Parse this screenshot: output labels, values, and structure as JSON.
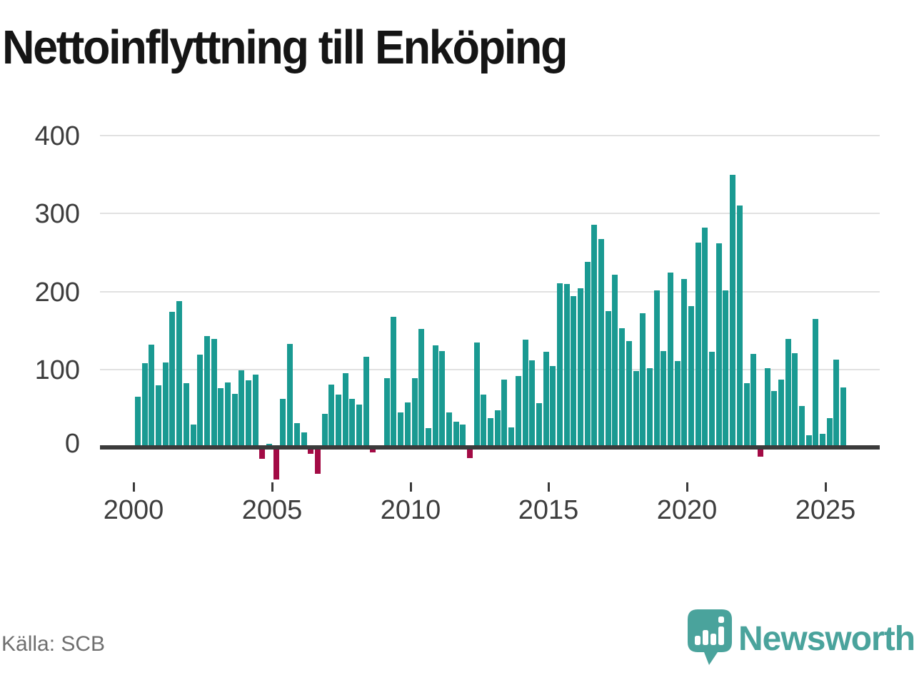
{
  "title": "Nettoinflyttning till Enköping",
  "source": {
    "label": "Källa: SCB"
  },
  "branding": {
    "logo_text": "Newsworthy",
    "logo_icon": "newsworthy-chart-bubble-icon"
  },
  "colors": {
    "bar_positive": "#1a9a92",
    "bar_negative": "#a30b45",
    "axis": "#3b3b3b",
    "gridline": "#e1e1e1",
    "tick_text": "#3d3d3d",
    "title_text": "#151515",
    "source_text": "#6f6f6f",
    "brand_teal": "#4aa39c"
  },
  "chart_data": {
    "type": "bar",
    "title": "Nettoinflyttning till Enköping",
    "xlabel": "",
    "ylabel": "",
    "grid": true,
    "legend": false,
    "frequency": "quarterly",
    "y_ticks": [
      0,
      100,
      200,
      300,
      400
    ],
    "x_ticks": [
      2000,
      2005,
      2010,
      2015,
      2020,
      2025
    ],
    "ylim": [
      -55,
      400
    ],
    "categories": [
      "2000Q1",
      "2000Q2",
      "2000Q3",
      "2000Q4",
      "2001Q1",
      "2001Q2",
      "2001Q3",
      "2001Q4",
      "2002Q1",
      "2002Q2",
      "2002Q3",
      "2002Q4",
      "2003Q1",
      "2003Q2",
      "2003Q3",
      "2003Q4",
      "2004Q1",
      "2004Q2",
      "2004Q3",
      "2004Q4",
      "2005Q1",
      "2005Q2",
      "2005Q3",
      "2005Q4",
      "2006Q1",
      "2006Q2",
      "2006Q3",
      "2006Q4",
      "2007Q1",
      "2007Q2",
      "2007Q3",
      "2007Q4",
      "2008Q1",
      "2008Q2",
      "2008Q3",
      "2008Q4",
      "2009Q1",
      "2009Q2",
      "2009Q3",
      "2009Q4",
      "2010Q1",
      "2010Q2",
      "2010Q3",
      "2010Q4",
      "2011Q1",
      "2011Q2",
      "2011Q3",
      "2011Q4",
      "2012Q1",
      "2012Q2",
      "2012Q3",
      "2012Q4",
      "2013Q1",
      "2013Q2",
      "2013Q3",
      "2013Q4",
      "2014Q1",
      "2014Q2",
      "2014Q3",
      "2014Q4",
      "2015Q1",
      "2015Q2",
      "2015Q3",
      "2015Q4",
      "2016Q1",
      "2016Q2",
      "2016Q3",
      "2016Q4",
      "2017Q1",
      "2017Q2",
      "2017Q3",
      "2017Q4",
      "2018Q1",
      "2018Q2",
      "2018Q3",
      "2018Q4",
      "2019Q1",
      "2019Q2",
      "2019Q3",
      "2019Q4",
      "2020Q1",
      "2020Q2",
      "2020Q3",
      "2020Q4",
      "2021Q1",
      "2021Q2",
      "2021Q3",
      "2021Q4",
      "2022Q1",
      "2022Q2",
      "2022Q3",
      "2022Q4",
      "2023Q1",
      "2023Q2",
      "2023Q3",
      "2023Q4",
      "2024Q1",
      "2024Q2",
      "2024Q3",
      "2024Q4",
      "2025Q1",
      "2025Q2",
      "2025Q3"
    ],
    "values": [
      65,
      108,
      132,
      80,
      109,
      174,
      188,
      82,
      29,
      119,
      143,
      139,
      76,
      83,
      69,
      99,
      86,
      93,
      -12,
      5,
      -38,
      62,
      133,
      31,
      19,
      -5,
      -31,
      43,
      81,
      68,
      95,
      62,
      55,
      116,
      -4,
      0,
      89,
      168,
      45,
      58,
      89,
      152,
      25,
      131,
      124,
      45,
      33,
      29,
      -11,
      135,
      68,
      38,
      48,
      87,
      26,
      92,
      138,
      112,
      57,
      123,
      104,
      211,
      210,
      194,
      204,
      238,
      286,
      267,
      175,
      222,
      153,
      136,
      98,
      172,
      102,
      201,
      124,
      224,
      111,
      216,
      181,
      263,
      282,
      123,
      262,
      201,
      350,
      310,
      82,
      120,
      -9,
      102,
      72,
      87,
      139,
      121,
      53,
      16,
      165,
      17,
      38,
      113,
      77
    ]
  }
}
